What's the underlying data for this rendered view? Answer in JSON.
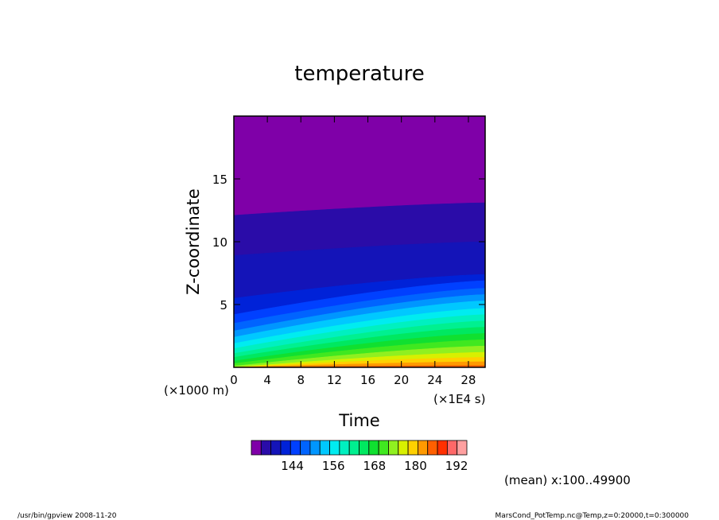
{
  "chart_data": {
    "type": "heatmap",
    "title": "temperature",
    "xlabel": "Time",
    "ylabel": "Z-coordinate",
    "x_unit": "(×1E4 s)",
    "y_unit": "(×1000 m)",
    "xlim": [
      0,
      30
    ],
    "ylim": [
      0,
      20
    ],
    "x_ticks": [
      0,
      4,
      8,
      12,
      16,
      20,
      24,
      28
    ],
    "y_ticks": [
      5,
      10,
      15
    ],
    "colorbar": {
      "ticks": [
        144,
        156,
        168,
        180,
        192
      ],
      "levels": [
        132,
        135,
        138,
        141,
        144,
        147,
        150,
        153,
        156,
        159,
        162,
        165,
        168,
        171,
        174,
        177,
        180,
        183,
        186,
        189,
        192,
        195
      ],
      "colors": [
        "#7f00a8",
        "#2a0ca8",
        "#1414b8",
        "#0022d8",
        "#0040ff",
        "#0064ff",
        "#0096ff",
        "#00c8ff",
        "#00ecf0",
        "#00f0c0",
        "#00f090",
        "#00e860",
        "#10e030",
        "#40e820",
        "#90f020",
        "#d8f000",
        "#ffd000",
        "#ff9a00",
        "#ff6000",
        "#ff3000",
        "#ff6868",
        "#ffa0a0"
      ]
    },
    "contour_boundaries": [
      {
        "level": 135,
        "z_at_t0": 12.1,
        "z_at_t30": 13.1
      },
      {
        "level": 138,
        "z_at_t0": 8.9,
        "z_at_t30": 10.0
      },
      {
        "level": 141,
        "z_at_t0": 5.5,
        "z_at_t30": 7.4
      },
      {
        "level": 144,
        "z_at_t0": 4.2,
        "z_at_t30": 6.9
      },
      {
        "level": 147,
        "z_at_t0": 3.5,
        "z_at_t30": 6.3
      },
      {
        "level": 150,
        "z_at_t0": 2.9,
        "z_at_t30": 5.8
      },
      {
        "level": 153,
        "z_at_t0": 2.4,
        "z_at_t30": 5.3
      },
      {
        "level": 156,
        "z_at_t0": 1.9,
        "z_at_t30": 4.7
      },
      {
        "level": 159,
        "z_at_t0": 1.5,
        "z_at_t30": 4.2
      },
      {
        "level": 162,
        "z_at_t0": 1.1,
        "z_at_t30": 3.7
      },
      {
        "level": 165,
        "z_at_t0": 0.8,
        "z_at_t30": 3.2
      },
      {
        "level": 168,
        "z_at_t0": 0.5,
        "z_at_t30": 2.7
      },
      {
        "level": 171,
        "z_at_t0": 0.3,
        "z_at_t30": 2.2
      },
      {
        "level": 174,
        "z_at_t0": 0.1,
        "z_at_t30": 1.7
      },
      {
        "level": 177,
        "z_at_t0": 0.0,
        "z_at_t30": 1.2
      },
      {
        "level": 180,
        "z_at_t0": 0.0,
        "z_at_t30": 0.8
      },
      {
        "level": 183,
        "z_at_t0": 0.0,
        "z_at_t30": 0.45
      },
      {
        "level": 186,
        "z_at_t0": 0.0,
        "z_at_t30": 0.15
      }
    ],
    "annotation": "(mean) x:100..49900"
  },
  "footer": {
    "left": "/usr/bin/gpview   2008-11-20",
    "right": "MarsCond_PotTemp.nc@Temp,z=0:20000,t=0:300000"
  }
}
